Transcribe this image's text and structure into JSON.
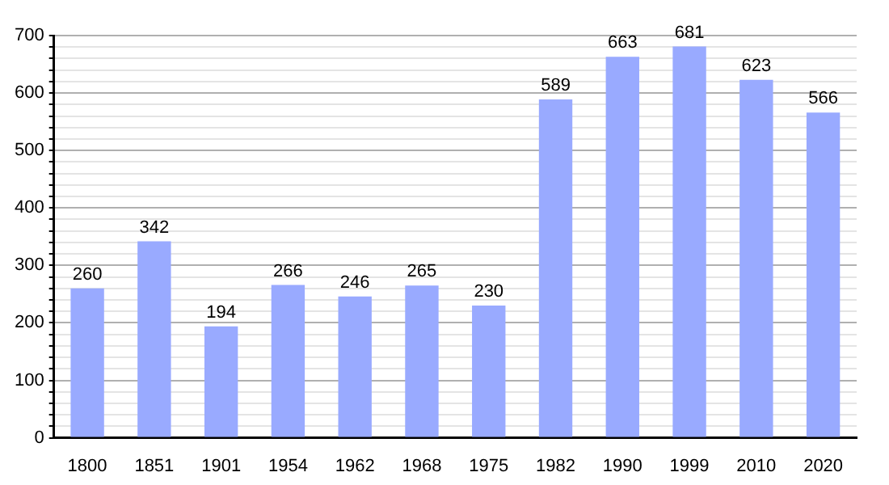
{
  "chart_data": {
    "type": "bar",
    "categories": [
      "1800",
      "1851",
      "1901",
      "1954",
      "1962",
      "1968",
      "1975",
      "1982",
      "1990",
      "1999",
      "2010",
      "2020"
    ],
    "values": [
      260,
      342,
      194,
      266,
      246,
      265,
      230,
      589,
      663,
      681,
      623,
      566
    ],
    "color": "#99aaff",
    "ylim": [
      0,
      700
    ],
    "yticks": [
      0,
      {
        "value": 20,
        "label": null
      },
      {
        "value": 40,
        "label": null
      },
      {
        "value": 60,
        "label": null
      },
      {
        "value": 80,
        "label": null
      },
      100,
      {
        "value": 120,
        "label": null
      },
      {
        "value": 140,
        "label": null
      },
      {
        "value": 160,
        "label": null
      },
      {
        "value": 180,
        "label": null
      },
      200,
      {
        "value": 220,
        "label": null
      },
      {
        "value": 240,
        "label": null
      },
      {
        "value": 260,
        "label": null
      },
      {
        "value": 280,
        "label": null
      },
      300,
      {
        "value": 320,
        "label": null
      },
      {
        "value": 340,
        "label": null
      },
      {
        "value": 360,
        "label": null
      },
      {
        "value": 380,
        "label": null
      },
      400,
      {
        "value": 420,
        "label": null
      },
      {
        "value": 440,
        "label": null
      },
      {
        "value": 460,
        "label": null
      },
      {
        "value": 480,
        "label": null
      },
      500,
      {
        "value": 520,
        "label": null
      },
      {
        "value": 540,
        "label": null
      },
      {
        "value": 560,
        "label": null
      },
      {
        "value": 580,
        "label": null
      },
      600,
      {
        "value": 620,
        "label": null
      },
      {
        "value": 640,
        "label": null
      },
      {
        "value": 660,
        "label": null
      },
      {
        "value": 680,
        "label": null
      },
      700
    ],
    "grid": "y",
    "data_labels": true,
    "legend": false
  }
}
